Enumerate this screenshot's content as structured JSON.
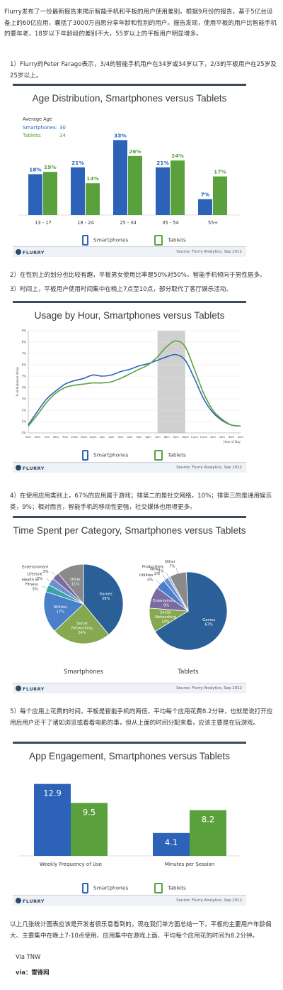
{
  "intro": "Flurry发布了一份最新报告来揭示智能手机和平板的用户使用差别。根据9月份的报告，基于5亿台设备上的60亿应用，囊括了3000万自愿分享年龄和性别的用户。报告发现，使用平板的用户比智能手机的要年老，18岁以下年龄段的差别不大，55岁以上的平板用户明显增多。",
  "point1": "1）Flurry的Peter Farago表示，3/4的智能手机用户在34岁或34岁以下，2/3的平板用户在25岁及25岁以上。",
  "point2": "2）在性别上的划分也比较有趣，平板男女使用比率是50%对50%，智能手机倾向于男性居多。",
  "point3": "3）时间上，平板用户使用时间集中在晚上7点至10点，部分取代了客厅娱乐活动。",
  "point4": "4）在使用应用类别上，67%的应用属于游戏；排第二的是社交网络，10%；排第三的是通用娱乐类，9%；相对而言，智能手机的移动性更强，社交媒体也用得更多。",
  "point5": "5）每个应用上花费的时间，平板是智能手机的两倍，平均每个应用花费8.2分钟，也就是说打开应用后用户还干了诸如浏览或看看电影的事，但从上面的时间分配来看，应该主要是在玩游戏。",
  "summary": "以上几张统计图表应该是开发者很乐意看到的，现在我们单方面总结一下，平板的主要用户年龄偏大、主要集中在晚上7-10点使用、应用集中在游戏上面、平均每个应用花的时间为8.2分钟。",
  "via1": "Via TNW",
  "via2": "via：雷锋网",
  "common": {
    "smartphones": "Smartphones",
    "tablets": "Tablets",
    "logo": "FLURRY",
    "source": "Source: Flurry Analytics, Sep 2012"
  },
  "colors": {
    "smartphone": "#2c63b8",
    "tablet": "#5aa13d",
    "highlight": "#c8c8c8"
  },
  "chart_data": [
    {
      "type": "bar",
      "title": "Age Distribution, Smartphones versus Tablets",
      "average_label": "Average Age",
      "averages": [
        {
          "name": "Smartphones:",
          "value": "30"
        },
        {
          "name": "Tablets:",
          "value": "34"
        }
      ],
      "categories": [
        "13 - 17",
        "18 - 24",
        "25 - 34",
        "35 - 54",
        "55+"
      ],
      "series": [
        {
          "name": "Smartphones",
          "values": [
            18,
            21,
            33,
            21,
            7
          ]
        },
        {
          "name": "Tablets",
          "values": [
            19,
            14,
            26,
            24,
            17
          ]
        }
      ],
      "ylim": [
        0,
        35
      ]
    },
    {
      "type": "line",
      "title": "Usage by Hour, Smartphones versus Tablets",
      "ylabel": "% of Audience Using",
      "xlabel": "Hour of Day",
      "y_ticks": [
        "0%",
        "1%",
        "2%",
        "3%",
        "4%",
        "5%",
        "6%",
        "7%",
        "8%",
        "9%"
      ],
      "ylim": [
        0,
        9
      ],
      "x": [
        "5am",
        "6am",
        "7am",
        "8am",
        "9am",
        "10am",
        "11am",
        "12pm",
        "1pm",
        "2pm",
        "3pm",
        "4pm",
        "5pm",
        "6pm",
        "7pm",
        "8pm",
        "9pm",
        "10pm",
        "11pm",
        "12am",
        "1am",
        "2am",
        "3am",
        "4am"
      ],
      "highlight": [
        "7pm",
        "10pm"
      ],
      "series": [
        {
          "name": "Smartphones",
          "values": [
            0.7,
            1.9,
            3.0,
            3.7,
            4.3,
            4.6,
            4.8,
            5.1,
            5.0,
            5.1,
            5.4,
            5.6,
            5.9,
            6.1,
            6.4,
            6.7,
            6.9,
            6.4,
            4.8,
            3.0,
            1.8,
            1.1,
            0.7,
            0.6
          ]
        },
        {
          "name": "Tablets",
          "values": [
            0.6,
            1.6,
            2.7,
            3.5,
            4.0,
            4.2,
            4.3,
            4.4,
            4.4,
            4.5,
            4.8,
            5.2,
            5.6,
            6.0,
            6.7,
            7.6,
            8.1,
            7.6,
            5.6,
            3.5,
            2.0,
            1.2,
            0.7,
            0.6
          ]
        }
      ]
    },
    {
      "type": "pie",
      "title": "Time Spent per Category, Smartphones versus Tablets",
      "pies": [
        {
          "name": "Smartphones",
          "slices": [
            {
              "label": "Games",
              "value": 39,
              "color": "#2a5f98"
            },
            {
              "label": "Social Networking",
              "value": 24,
              "color": "#86a850"
            },
            {
              "label": "Utilities",
              "value": 17,
              "color": "#4a7fc9"
            },
            {
              "label": "Health & Fitness",
              "value": 3,
              "color": "#3ba3a8"
            },
            {
              "label": "Lifestyle",
              "value": 3,
              "color": "#6c8fd0"
            },
            {
              "label": "Entertainment",
              "value": 3,
              "color": "#7a6ba0"
            },
            {
              "label": "Other",
              "value": 11,
              "color": "#8a8a8a"
            }
          ]
        },
        {
          "name": "Tablets",
          "slices": [
            {
              "label": "Games",
              "value": 67,
              "color": "#2a5f98"
            },
            {
              "label": "Social Networking",
              "value": 10,
              "color": "#86a850"
            },
            {
              "label": "Entertainment",
              "value": 9,
              "color": "#7a6ba0"
            },
            {
              "label": "Utilities",
              "value": 4,
              "color": "#4a7fc9"
            },
            {
              "label": "News",
              "value": 2,
              "color": "#6c8fd0"
            },
            {
              "label": "Productivity",
              "value": 1,
              "color": "#9ab8e0"
            },
            {
              "label": "Other",
              "value": 7,
              "color": "#8a8a8a"
            }
          ]
        }
      ]
    },
    {
      "type": "bar",
      "title": "App Engagement, Smartphones versus Tablets",
      "categories": [
        "Weekly Frequency of Use",
        "Minutes per Session"
      ],
      "series": [
        {
          "name": "Smartphones",
          "values": [
            12.9,
            4.1
          ]
        },
        {
          "name": "Tablets",
          "values": [
            9.5,
            8.2
          ]
        }
      ],
      "ylim": [
        0,
        14
      ]
    }
  ]
}
